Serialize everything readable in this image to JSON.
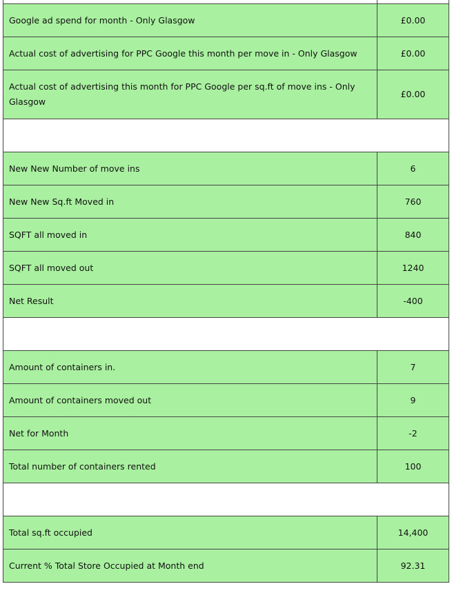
{
  "sections": [
    {
      "rows": [
        {
          "label": "Google ad spend for month  - Only Glasgow",
          "value": "£0.00"
        },
        {
          "label": "Actual cost of advertising  for PPC Google this month per move in - Only Glasgow",
          "value": "£0.00"
        },
        {
          "label": "Actual cost of advertising this month for PPC Google  per sq.ft of move ins - Only Glasgow",
          "value": "£0.00"
        }
      ]
    },
    {
      "rows": [
        {
          "label": "New New Number of move ins",
          "value": "6"
        },
        {
          "label": "New New  Sq.ft Moved in",
          "value": "760"
        },
        {
          "label": "SQFT all moved in",
          "value": "840"
        },
        {
          "label": "SQFT all moved out",
          "value": "1240"
        },
        {
          "label": "Net Result",
          "value": "-400"
        }
      ]
    },
    {
      "rows": [
        {
          "label": "Amount of containers in.",
          "value": "7"
        },
        {
          "label": "Amount of containers moved out",
          "value": "9"
        },
        {
          "label": "Net for Month",
          "value": "-2"
        },
        {
          "label": "Total number of containers rented",
          "value": "100"
        }
      ]
    },
    {
      "rows": [
        {
          "label": "Total sq.ft occupied",
          "value": "14,400"
        },
        {
          "label": "Current % Total Store Occupied at Month end",
          "value": "92.31"
        }
      ]
    }
  ]
}
